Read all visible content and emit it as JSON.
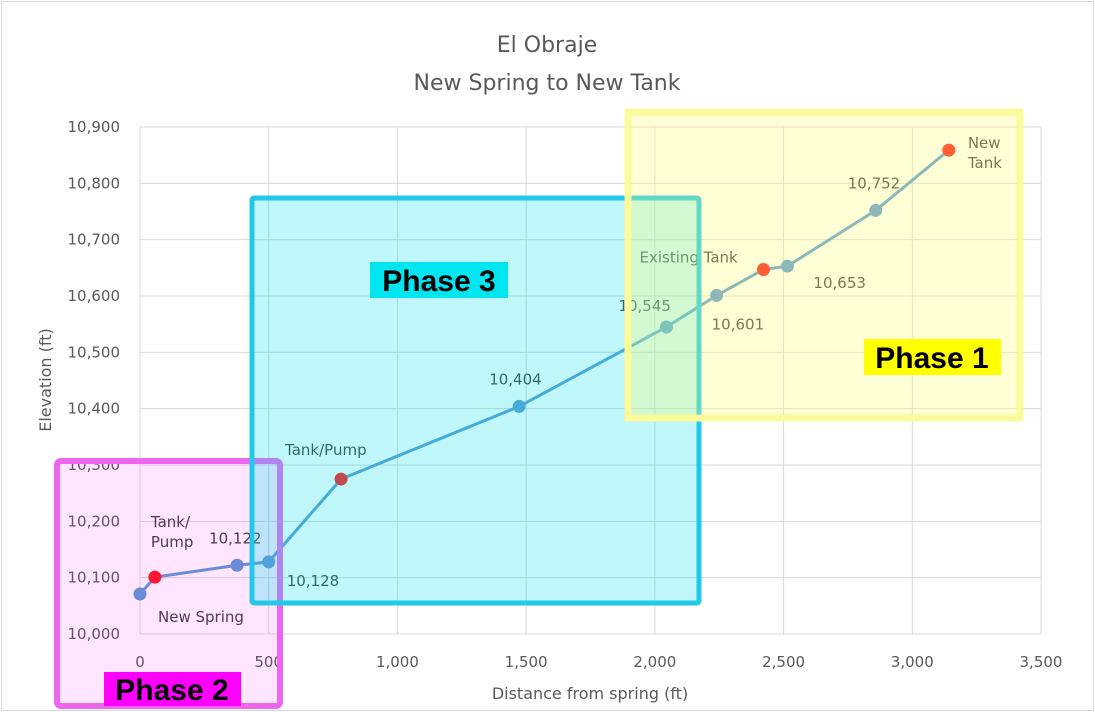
{
  "chart_data": {
    "type": "line",
    "title": "El Obraje",
    "subtitle": "New Spring to New Tank",
    "xlabel": "Distance from spring (ft)",
    "ylabel": "Elevation (ft)",
    "xlim": [
      0,
      3500
    ],
    "ylim": [
      10000,
      10900
    ],
    "xticks": [
      "0",
      "500",
      "1,000",
      "1,500",
      "2,000",
      "2,500",
      "3,000",
      "3,500"
    ],
    "xtick_values": [
      0,
      500,
      1000,
      1500,
      2000,
      2500,
      3000,
      3500
    ],
    "yticks": [
      "10,000",
      "10,100",
      "10,200",
      "10,300",
      "10,400",
      "10,500",
      "10,600",
      "10,700",
      "10,800",
      "10,900"
    ],
    "ytick_values": [
      10000,
      10100,
      10200,
      10300,
      10400,
      10500,
      10600,
      10700,
      10800,
      10900
    ],
    "grid": true,
    "line_color": "#5b9bd5",
    "marker_color": "#5b9bd5",
    "highlight_color": "#ff1a1a",
    "points": [
      {
        "x": 0,
        "y": 10071,
        "label": "New Spring",
        "highlight": false
      },
      {
        "x": 58,
        "y": 10101,
        "label": "Tank/\nPump",
        "highlight": true
      },
      {
        "x": 377,
        "y": 10122,
        "label": "10,122",
        "highlight": false
      },
      {
        "x": 500,
        "y": 10128,
        "label": "10,128",
        "highlight": false
      },
      {
        "x": 781,
        "y": 10275,
        "label": "Tank/Pump",
        "highlight": true
      },
      {
        "x": 1473,
        "y": 10404,
        "label": "10,404",
        "highlight": false
      },
      {
        "x": 2045,
        "y": 10545,
        "label": "10,545",
        "highlight": false
      },
      {
        "x": 2240,
        "y": 10601,
        "label": "10,601",
        "highlight": false
      },
      {
        "x": 2422,
        "y": 10647,
        "label": "Existing Tank",
        "highlight": true
      },
      {
        "x": 2515,
        "y": 10653,
        "label": "10,653",
        "highlight": false
      },
      {
        "x": 2858,
        "y": 10752,
        "label": "10,752",
        "highlight": false
      },
      {
        "x": 3142,
        "y": 10859,
        "label": "New\nTank",
        "highlight": true
      }
    ],
    "annotations": [
      {
        "label": "Phase 1",
        "color": "#ffff00"
      },
      {
        "label": "Phase 2",
        "color": "#ff00ff"
      },
      {
        "label": "Phase 3",
        "color": "#00e5f0"
      }
    ]
  }
}
